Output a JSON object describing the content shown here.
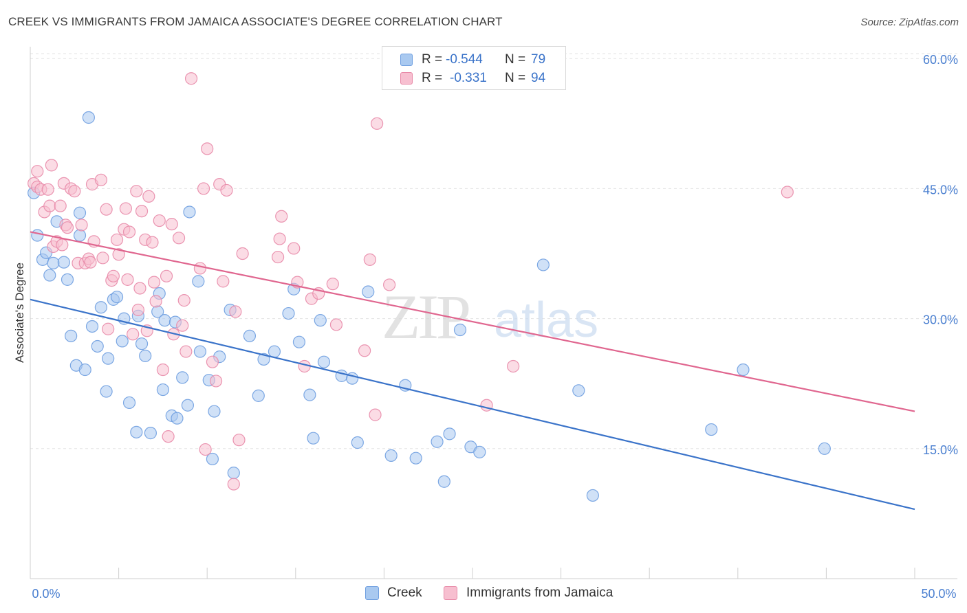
{
  "title": "CREEK VS IMMIGRANTS FROM JAMAICA ASSOCIATE'S DEGREE CORRELATION CHART",
  "source": "Source: ZipAtlas.com",
  "watermark": {
    "zip": "ZIP",
    "atlas": "atlas"
  },
  "legend": {
    "r_label": "R =",
    "n_label": "N =",
    "rows": [
      {
        "name": "Creek",
        "r": "-0.544",
        "n": "79",
        "color": "#a9c9f0",
        "stroke": "#6f9fe0"
      },
      {
        "name": "Immigrants from Jamaica",
        "r": "-0.331",
        "n": "94",
        "color": "#f7bfd0",
        "stroke": "#e88aa8"
      }
    ]
  },
  "chart_data": {
    "type": "scatter",
    "xlabel": "",
    "ylabel": "Associate's Degree",
    "xlim": [
      0,
      50
    ],
    "ylim": [
      0,
      62
    ],
    "x_tick_labels": [
      "0.0%",
      "50.0%"
    ],
    "y_ticks": [
      15,
      30,
      45,
      60
    ],
    "y_tick_labels": [
      "15.0%",
      "30.0%",
      "45.0%",
      "60.0%"
    ],
    "grid": true,
    "legend_placement": "top-center",
    "series": [
      {
        "name": "Creek",
        "color": "#a9c9f0",
        "stroke": "#6f9fe0",
        "line_color": "#3a73c9",
        "trend": {
          "x": [
            0,
            50
          ],
          "y": [
            32.2,
            8.0
          ]
        },
        "points": [
          [
            0.2,
            44.5
          ],
          [
            0.4,
            39.6
          ],
          [
            0.7,
            36.8
          ],
          [
            0.9,
            37.6
          ],
          [
            1.1,
            35.0
          ],
          [
            1.3,
            36.4
          ],
          [
            1.5,
            41.2
          ],
          [
            1.9,
            36.5
          ],
          [
            2.1,
            34.5
          ],
          [
            2.3,
            28.0
          ],
          [
            2.6,
            24.6
          ],
          [
            2.8,
            42.2
          ],
          [
            2.8,
            39.6
          ],
          [
            3.1,
            24.1
          ],
          [
            3.3,
            53.2
          ],
          [
            3.5,
            29.1
          ],
          [
            3.8,
            26.8
          ],
          [
            4.0,
            31.3
          ],
          [
            4.3,
            21.6
          ],
          [
            4.4,
            25.4
          ],
          [
            4.7,
            32.2
          ],
          [
            4.9,
            32.5
          ],
          [
            5.2,
            27.4
          ],
          [
            5.3,
            30.0
          ],
          [
            5.6,
            20.3
          ],
          [
            6.0,
            16.9
          ],
          [
            6.1,
            30.3
          ],
          [
            6.3,
            27.1
          ],
          [
            6.5,
            25.7
          ],
          [
            6.8,
            16.8
          ],
          [
            7.2,
            30.8
          ],
          [
            7.3,
            32.9
          ],
          [
            7.5,
            21.8
          ],
          [
            7.6,
            29.8
          ],
          [
            8.0,
            18.8
          ],
          [
            8.2,
            29.6
          ],
          [
            8.3,
            18.5
          ],
          [
            8.6,
            23.2
          ],
          [
            8.9,
            20.0
          ],
          [
            9.0,
            42.3
          ],
          [
            9.5,
            34.3
          ],
          [
            9.6,
            26.2
          ],
          [
            10.1,
            22.9
          ],
          [
            10.3,
            13.8
          ],
          [
            10.4,
            19.3
          ],
          [
            10.7,
            25.6
          ],
          [
            11.3,
            31.0
          ],
          [
            11.5,
            12.2
          ],
          [
            12.4,
            28.0
          ],
          [
            12.9,
            21.1
          ],
          [
            13.2,
            25.3
          ],
          [
            13.8,
            26.2
          ],
          [
            14.6,
            30.6
          ],
          [
            14.9,
            33.4
          ],
          [
            15.2,
            27.3
          ],
          [
            15.8,
            21.2
          ],
          [
            16.0,
            16.2
          ],
          [
            16.4,
            29.8
          ],
          [
            16.6,
            25.0
          ],
          [
            17.6,
            23.4
          ],
          [
            18.2,
            23.1
          ],
          [
            18.5,
            15.7
          ],
          [
            19.1,
            33.1
          ],
          [
            20.4,
            14.2
          ],
          [
            21.2,
            22.3
          ],
          [
            21.8,
            13.9
          ],
          [
            23.0,
            15.8
          ],
          [
            23.4,
            11.2
          ],
          [
            23.7,
            16.7
          ],
          [
            24.3,
            28.7
          ],
          [
            24.9,
            15.2
          ],
          [
            25.4,
            14.6
          ],
          [
            29.0,
            36.2
          ],
          [
            31.0,
            21.7
          ],
          [
            31.8,
            9.6
          ],
          [
            38.5,
            17.2
          ],
          [
            40.3,
            24.1
          ],
          [
            44.9,
            15.0
          ]
        ]
      },
      {
        "name": "Immigrants from Jamaica",
        "color": "#f7bfd0",
        "stroke": "#e88aa8",
        "line_color": "#e0668f",
        "trend": {
          "x": [
            0,
            50
          ],
          "y": [
            40.0,
            19.3
          ]
        },
        "points": [
          [
            0.2,
            45.6
          ],
          [
            0.4,
            47.0
          ],
          [
            0.4,
            45.2
          ],
          [
            0.6,
            44.9
          ],
          [
            0.8,
            42.3
          ],
          [
            1.0,
            44.9
          ],
          [
            1.1,
            43.0
          ],
          [
            1.2,
            47.7
          ],
          [
            1.3,
            38.3
          ],
          [
            1.5,
            38.9
          ],
          [
            1.7,
            43.0
          ],
          [
            1.8,
            38.5
          ],
          [
            1.9,
            45.6
          ],
          [
            2.0,
            40.8
          ],
          [
            2.1,
            40.5
          ],
          [
            2.3,
            45.0
          ],
          [
            2.5,
            44.7
          ],
          [
            2.7,
            36.4
          ],
          [
            2.9,
            40.8
          ],
          [
            3.1,
            36.4
          ],
          [
            3.3,
            36.9
          ],
          [
            3.4,
            36.5
          ],
          [
            3.5,
            45.5
          ],
          [
            3.6,
            38.9
          ],
          [
            4.0,
            46.0
          ],
          [
            4.1,
            37.0
          ],
          [
            4.3,
            42.6
          ],
          [
            4.4,
            28.8
          ],
          [
            4.6,
            34.4
          ],
          [
            4.7,
            34.9
          ],
          [
            4.9,
            39.1
          ],
          [
            5.0,
            37.4
          ],
          [
            5.3,
            40.3
          ],
          [
            5.4,
            42.7
          ],
          [
            5.5,
            34.5
          ],
          [
            5.6,
            40.0
          ],
          [
            5.8,
            28.2
          ],
          [
            6.0,
            44.7
          ],
          [
            6.1,
            31.0
          ],
          [
            6.2,
            33.5
          ],
          [
            6.3,
            42.4
          ],
          [
            6.5,
            39.1
          ],
          [
            6.6,
            28.6
          ],
          [
            6.7,
            44.1
          ],
          [
            6.9,
            38.8
          ],
          [
            7.0,
            34.2
          ],
          [
            7.1,
            32.0
          ],
          [
            7.3,
            41.3
          ],
          [
            7.5,
            24.1
          ],
          [
            7.7,
            34.9
          ],
          [
            7.8,
            16.4
          ],
          [
            8.0,
            40.9
          ],
          [
            8.1,
            28.2
          ],
          [
            8.4,
            39.3
          ],
          [
            8.6,
            29.2
          ],
          [
            8.7,
            32.1
          ],
          [
            8.8,
            26.2
          ],
          [
            9.1,
            57.7
          ],
          [
            9.6,
            35.8
          ],
          [
            9.8,
            45.0
          ],
          [
            9.9,
            14.9
          ],
          [
            10.0,
            49.6
          ],
          [
            10.3,
            25.0
          ],
          [
            10.5,
            22.8
          ],
          [
            10.7,
            45.5
          ],
          [
            10.9,
            34.3
          ],
          [
            11.1,
            44.8
          ],
          [
            11.5,
            10.9
          ],
          [
            11.6,
            30.8
          ],
          [
            11.8,
            16.0
          ],
          [
            12.0,
            37.5
          ],
          [
            14.0,
            37.1
          ],
          [
            14.1,
            39.2
          ],
          [
            14.2,
            41.8
          ],
          [
            14.9,
            38.1
          ],
          [
            15.1,
            34.2
          ],
          [
            15.5,
            24.5
          ],
          [
            15.9,
            32.3
          ],
          [
            16.3,
            32.9
          ],
          [
            17.1,
            34.0
          ],
          [
            17.3,
            29.3
          ],
          [
            18.9,
            26.3
          ],
          [
            19.2,
            36.8
          ],
          [
            19.5,
            18.9
          ],
          [
            19.6,
            52.5
          ],
          [
            20.3,
            33.9
          ],
          [
            25.8,
            20.0
          ],
          [
            27.3,
            24.5
          ],
          [
            42.8,
            44.6
          ]
        ]
      }
    ]
  }
}
